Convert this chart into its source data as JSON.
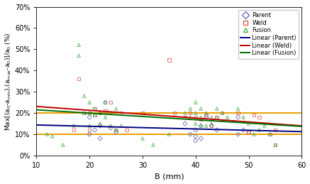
{
  "parent_x": [
    20,
    20,
    21,
    22,
    22,
    23,
    24,
    25,
    38,
    39,
    40,
    40,
    40,
    41,
    41,
    42,
    43,
    44,
    48,
    48,
    49,
    50
  ],
  "parent_y": [
    0.18,
    0.1,
    0.12,
    0.14,
    0.08,
    0.25,
    0.13,
    0.11,
    0.15,
    0.1,
    0.12,
    0.09,
    0.07,
    0.14,
    0.08,
    0.18,
    0.14,
    0.12,
    0.18,
    0.1,
    0.12,
    0.11
  ],
  "weld_x": [
    17,
    18,
    19,
    20,
    20,
    21,
    21,
    22,
    23,
    24,
    25,
    26,
    27,
    30,
    35,
    36,
    38,
    39,
    40,
    41,
    42,
    43,
    44,
    45,
    48,
    50,
    51,
    52,
    54,
    55,
    55
  ],
  "weld_y": [
    0.12,
    0.36,
    0.2,
    0.2,
    0.12,
    0.22,
    0.19,
    0.2,
    0.21,
    0.25,
    0.12,
    0.2,
    0.12,
    0.2,
    0.45,
    0.2,
    0.18,
    0.2,
    0.18,
    0.17,
    0.19,
    0.14,
    0.18,
    0.2,
    0.2,
    0.11,
    0.19,
    0.18,
    0.1,
    0.12,
    0.05
  ],
  "fusion_x": [
    12,
    13,
    15,
    17,
    18,
    18,
    19,
    19,
    20,
    20,
    20,
    21,
    21,
    22,
    22,
    23,
    23,
    24,
    24,
    25,
    25,
    26,
    30,
    32,
    35,
    38,
    39,
    39,
    40,
    40,
    40,
    41,
    41,
    41,
    42,
    42,
    43,
    43,
    44,
    44,
    45,
    46,
    48,
    49,
    50,
    51,
    52,
    53,
    54,
    55
  ],
  "fusion_y": [
    0.1,
    0.09,
    0.05,
    0.14,
    0.52,
    0.47,
    0.28,
    0.2,
    0.25,
    0.2,
    0.14,
    0.22,
    0.19,
    0.2,
    0.15,
    0.25,
    0.18,
    0.2,
    0.14,
    0.22,
    0.12,
    0.14,
    0.08,
    0.05,
    0.1,
    0.2,
    0.22,
    0.18,
    0.25,
    0.2,
    0.15,
    0.22,
    0.18,
    0.14,
    0.2,
    0.14,
    0.18,
    0.15,
    0.22,
    0.18,
    0.2,
    0.18,
    0.22,
    0.18,
    0.15,
    0.1,
    0.12,
    0.14,
    0.1,
    0.05
  ],
  "xmin": 10,
  "xmax": 60,
  "ymin": 0.0,
  "ymax": 0.7,
  "limit_10": 0.1,
  "limit_20": 0.2,
  "xlabel": "B (mm)",
  "ytick_labels": [
    "0%",
    "10%",
    "20%",
    "30%",
    "40%",
    "50%",
    "60%",
    "70%"
  ],
  "ytick_vals": [
    0.0,
    0.1,
    0.2,
    0.3,
    0.4,
    0.5,
    0.6,
    0.7
  ],
  "xtick_vals": [
    10,
    20,
    30,
    40,
    50,
    60
  ],
  "parent_color": "#7070c0",
  "weld_color": "#e06060",
  "fusion_color": "#50b050",
  "parent_line_color": "#000080",
  "weld_line_color": "#c00000",
  "fusion_line_color": "#007000",
  "limit_color": "#e8a000",
  "bg_color": "#ffffff",
  "legend_labels": [
    "Parent",
    "Weld",
    "Fusion",
    "Linear (Parent)",
    "Linear (Weld)",
    "Linear (Fusion)"
  ],
  "title_fontsize": 8,
  "axis_fontsize": 8,
  "tick_fontsize": 7,
  "legend_fontsize": 6
}
